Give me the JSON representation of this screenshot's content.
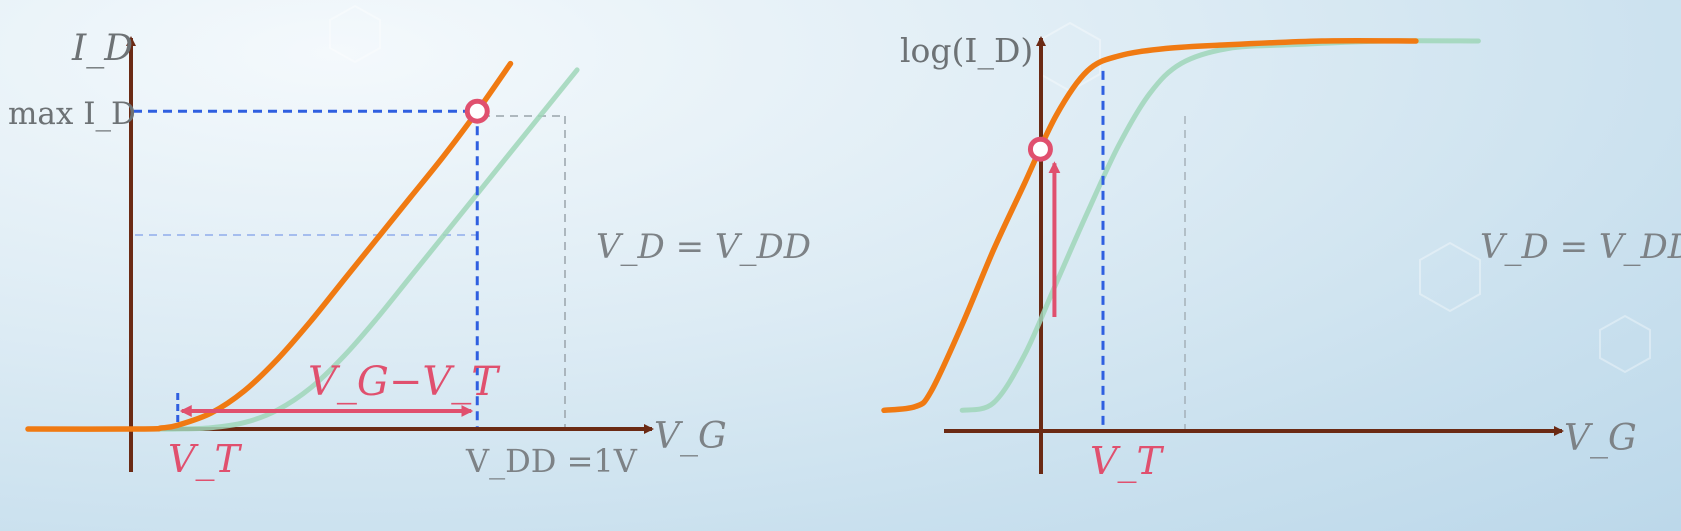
{
  "colors": {
    "axis": "#6b2a14",
    "orange": "#f07a12",
    "green": "#9fd6b9",
    "blue": "#2f5fe0",
    "pink": "#e0506e",
    "gray": "#9aa4ab",
    "text": "#7d8286"
  },
  "chart_data": [
    {
      "type": "line",
      "xlabel": "V_G",
      "ylabel": "I_D",
      "labels": {
        "max_id": "max I_D",
        "vt": "V_T",
        "vg_minus_vt": "V_G−V_T",
        "vdd": "V_DD =1V",
        "condition": "V_D = V_DD"
      },
      "xlim": [
        -0.35,
        1.45
      ],
      "ylim": [
        0,
        1.35
      ],
      "vt": 0.1,
      "vdd": 1.0,
      "max_id": 1.0,
      "series": [
        {
          "color": "orange",
          "x": [
            -0.35,
            0.0,
            0.05,
            0.1,
            0.2,
            0.3,
            0.4,
            0.5,
            0.6,
            0.7,
            0.8,
            0.9,
            1.0,
            1.1
          ],
          "y": [
            0.0,
            0.0,
            0.003,
            0.012,
            0.05,
            0.12,
            0.22,
            0.34,
            0.47,
            0.6,
            0.73,
            0.86,
            1.0,
            1.15
          ]
        },
        {
          "color": "green",
          "x": [
            0.0,
            0.1,
            0.2,
            0.3,
            0.4,
            0.5,
            0.6,
            0.7,
            0.8,
            0.9,
            1.0,
            1.1,
            1.2,
            1.3
          ],
          "y": [
            0.0,
            0.0,
            0.004,
            0.02,
            0.06,
            0.13,
            0.23,
            0.35,
            0.48,
            0.61,
            0.74,
            0.87,
            1.0,
            1.13
          ]
        }
      ]
    },
    {
      "type": "line",
      "xlabel": "V_G",
      "ylabel": "log(I_D)",
      "labels": {
        "vt": "V_T",
        "condition": "V_D = V_DD"
      },
      "xlim": [
        -0.5,
        1.6
      ],
      "ylim": [
        0,
        1.15
      ],
      "vt": 0.2,
      "series": [
        {
          "color": "orange",
          "x": [
            -0.5,
            -0.4,
            -0.35,
            -0.25,
            -0.15,
            -0.05,
            0.05,
            0.15,
            0.25,
            0.4,
            0.6,
            0.9,
            1.2
          ],
          "y": [
            0.05,
            0.06,
            0.1,
            0.28,
            0.48,
            0.66,
            0.84,
            0.96,
            1.0,
            1.02,
            1.03,
            1.04,
            1.04
          ]
        },
        {
          "color": "green",
          "x": [
            -0.25,
            -0.15,
            -0.05,
            0.05,
            0.15,
            0.25,
            0.35,
            0.45,
            0.6,
            0.8,
            1.1,
            1.4
          ],
          "y": [
            0.05,
            0.07,
            0.2,
            0.39,
            0.58,
            0.76,
            0.9,
            0.98,
            1.02,
            1.03,
            1.04,
            1.04
          ]
        }
      ]
    }
  ]
}
